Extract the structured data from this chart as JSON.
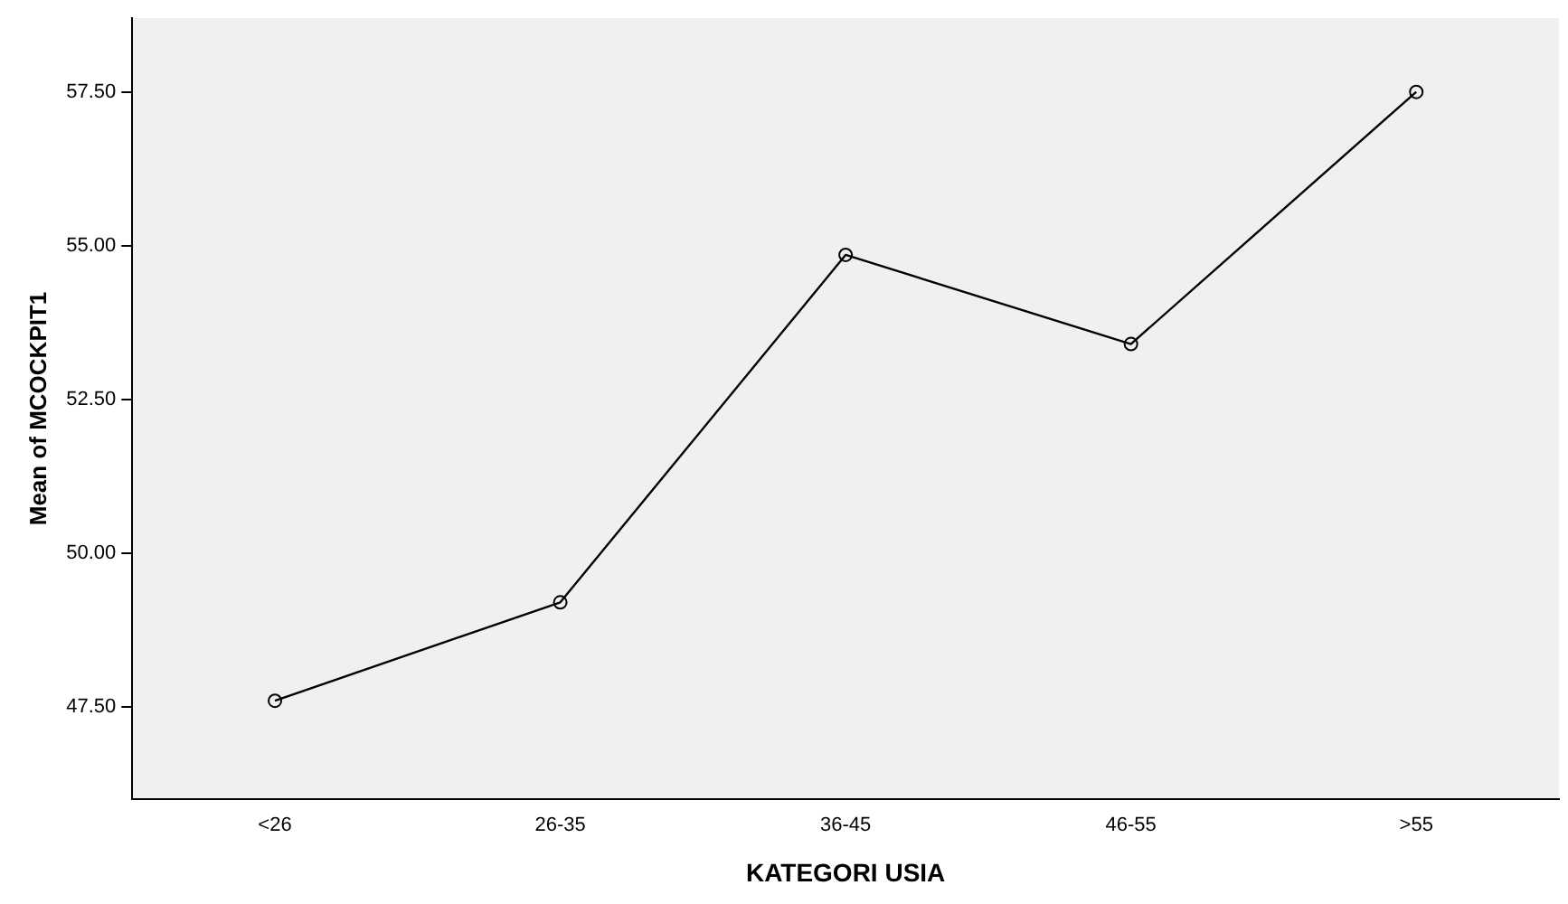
{
  "chart_data": {
    "type": "line",
    "xlabel": "KATEGORI USIA",
    "ylabel": "Mean of MCOCKPIT1",
    "categories": [
      "<26",
      "26-35",
      "36-45",
      "46-55",
      ">55"
    ],
    "series": [
      {
        "color": "#000000",
        "values": [
          47.6,
          49.2,
          54.85,
          53.4,
          57.5
        ]
      }
    ],
    "ylim": [
      46,
      58.7
    ],
    "yticks": [
      {
        "value": 47.5,
        "label": "47.50"
      },
      {
        "value": 50,
        "label": "50.00"
      },
      {
        "value": 52.5,
        "label": "52.50"
      },
      {
        "value": 55,
        "label": "55.00"
      },
      {
        "value": 57.5,
        "label": "57.50"
      }
    ],
    "grid": false,
    "legend": false,
    "marker": "circle",
    "line_style": "solid"
  }
}
